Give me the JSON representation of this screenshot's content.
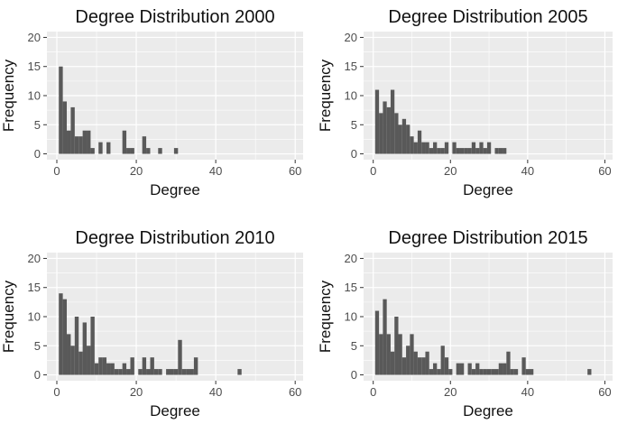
{
  "chart_data": [
    {
      "type": "bar",
      "title": "Degree Distribution 2000",
      "xlabel": "Degree",
      "ylabel": "Frequency",
      "xlim": [
        -2.5,
        62
      ],
      "ylim": [
        -1,
        21
      ],
      "x_ticks": [
        0,
        20,
        40,
        60
      ],
      "y_ticks": [
        0,
        5,
        10,
        15,
        20
      ],
      "grid": true,
      "bar_color": "#595959",
      "panel_color": "#ebebeb",
      "x": [
        1,
        2,
        3,
        4,
        5,
        6,
        7,
        8,
        9,
        11,
        13,
        17,
        18,
        19,
        22,
        23,
        26,
        30
      ],
      "values": [
        15,
        9,
        4,
        8,
        3,
        3,
        4,
        4,
        1,
        2,
        2,
        4,
        1,
        1,
        3,
        1,
        1,
        1
      ]
    },
    {
      "type": "bar",
      "title": "Degree Distribution 2005",
      "xlabel": "Degree",
      "ylabel": "Frequency",
      "xlim": [
        -2.5,
        62
      ],
      "ylim": [
        -1,
        21
      ],
      "x_ticks": [
        0,
        20,
        40,
        60
      ],
      "y_ticks": [
        0,
        5,
        10,
        15,
        20
      ],
      "grid": true,
      "bar_color": "#595959",
      "panel_color": "#ebebeb",
      "x": [
        1,
        2,
        3,
        4,
        5,
        6,
        7,
        8,
        9,
        10,
        11,
        12,
        13,
        14,
        15,
        16,
        17,
        18,
        19,
        20,
        21,
        22,
        23,
        24,
        25,
        26,
        27,
        28,
        29,
        30,
        31,
        32,
        33,
        34
      ],
      "values": [
        11,
        7,
        9,
        8,
        11,
        7,
        5,
        6,
        5,
        3,
        2,
        4,
        2,
        2,
        1,
        2,
        1,
        1,
        2,
        0,
        2,
        1,
        1,
        1,
        1,
        2,
        1,
        2,
        1,
        2,
        0,
        1,
        1,
        1
      ]
    },
    {
      "type": "bar",
      "title": "Degree Distribution 2010",
      "xlabel": "Degree",
      "ylabel": "Frequency",
      "xlim": [
        -2.5,
        62
      ],
      "ylim": [
        -1,
        21
      ],
      "x_ticks": [
        0,
        20,
        40,
        60
      ],
      "y_ticks": [
        0,
        5,
        10,
        15,
        20
      ],
      "grid": true,
      "bar_color": "#595959",
      "panel_color": "#ebebeb",
      "x": [
        1,
        2,
        3,
        4,
        5,
        6,
        7,
        8,
        9,
        10,
        11,
        12,
        13,
        14,
        15,
        16,
        17,
        18,
        19,
        20,
        21,
        22,
        23,
        24,
        25,
        26,
        27,
        28,
        29,
        30,
        31,
        32,
        33,
        34,
        35,
        46
      ],
      "values": [
        14,
        13,
        7,
        5,
        10,
        4,
        9,
        5,
        10,
        2,
        3,
        3,
        2,
        2,
        1,
        1,
        2,
        1,
        3,
        0,
        1,
        3,
        1,
        3,
        1,
        1,
        0,
        1,
        1,
        1,
        6,
        1,
        1,
        1,
        3,
        1
      ]
    },
    {
      "type": "bar",
      "title": "Degree Distribution 2015",
      "xlabel": "Degree",
      "ylabel": "Frequency",
      "xlim": [
        -2.5,
        62
      ],
      "ylim": [
        -1,
        21
      ],
      "x_ticks": [
        0,
        20,
        40,
        60
      ],
      "y_ticks": [
        0,
        5,
        10,
        15,
        20
      ],
      "grid": true,
      "bar_color": "#595959",
      "panel_color": "#ebebeb",
      "x": [
        1,
        2,
        3,
        4,
        5,
        6,
        7,
        8,
        9,
        10,
        11,
        12,
        13,
        14,
        15,
        16,
        17,
        18,
        19,
        20,
        21,
        22,
        23,
        24,
        25,
        26,
        27,
        28,
        29,
        30,
        31,
        32,
        33,
        34,
        35,
        36,
        37,
        38,
        39,
        40,
        41,
        56
      ],
      "values": [
        11,
        7,
        13,
        7,
        4,
        10,
        7,
        3,
        5,
        7,
        4,
        3,
        3,
        4,
        1,
        2,
        1,
        5,
        3,
        1,
        0,
        2,
        2,
        0,
        2,
        1,
        2,
        1,
        1,
        1,
        1,
        1,
        2,
        2,
        4,
        1,
        1,
        0,
        3,
        1,
        1,
        1
      ]
    }
  ]
}
